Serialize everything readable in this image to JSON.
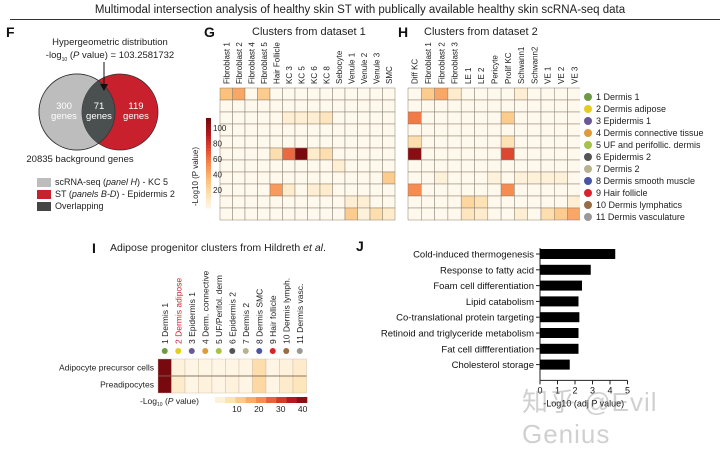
{
  "page_title": "Multimodal intersection analysis of healthy skin ST with publically available healthy skin scRNA-seq data",
  "panels": {
    "F": {
      "letter": "F",
      "title_line1": "Hypergeometric distribution",
      "title_line2": "-log",
      "title_sub": "10",
      "title_line2b": " (",
      "title_italic": "P",
      "title_line2c": " value) = 103.2581732",
      "left_count": "300",
      "center_count": "71",
      "right_count": "119",
      "genes_word": "genes",
      "background": "20835 background genes",
      "legend": [
        {
          "label_pre": "scRNA-seq (",
          "label_it": "panel H",
          "label_post": ") - KC 5",
          "color": "#bdbdbd"
        },
        {
          "label_pre": "ST (",
          "label_it": "panels B-D",
          "label_post": ") - Epidermis 2",
          "color": "#c8202c"
        },
        {
          "label_pre": "Overlapping",
          "label_it": "",
          "label_post": "",
          "color": "#454545"
        }
      ],
      "colors": {
        "left": "#bdbdbd",
        "right": "#c8202c",
        "overlap": "#4a5050"
      }
    },
    "G": {
      "letter": "G",
      "title": "Clusters from dataset 1"
    },
    "H": {
      "letter": "H",
      "title": "Clusters from dataset 2"
    },
    "I": {
      "letter": "I",
      "title_pre": "Adipose progenitor clusters from Hildreth ",
      "title_it": "et al",
      "title_post": "."
    },
    "J": {
      "letter": "J"
    }
  },
  "legend_clusters": [
    {
      "label": "1 Dermis 1",
      "color": "#6f9a45"
    },
    {
      "label": "2 Dermis adipose",
      "color": "#e4cc25"
    },
    {
      "label": "3 Epidermis 1",
      "color": "#6a5a94"
    },
    {
      "label": "4 Dermis connective tissue",
      "color": "#e09a3a"
    },
    {
      "label": "5 UF and perifollic. dermis",
      "color": "#a5c24a"
    },
    {
      "label": "6 Epidermis 2",
      "color": "#555555"
    },
    {
      "label": "7 Dermis 2",
      "color": "#b8b38f"
    },
    {
      "label": "8 Dermis smooth muscle",
      "color": "#4a54a6"
    },
    {
      "label": "9 Hair follicle",
      "color": "#d9232c"
    },
    {
      "label": "10 Dermis lymphatics",
      "color": "#9a6c42"
    },
    {
      "label": "11 Dermis vasculature",
      "color": "#999999"
    }
  ],
  "colorbar_G": {
    "label": "-Log10 (P value)",
    "ticks": [
      "100",
      "80",
      "60",
      "40",
      "20"
    ]
  },
  "colorbar_I": {
    "label_pre": "-Log",
    "label_sub": "10",
    "label_post": " (",
    "label_it": "P",
    "label_end": " value)",
    "ticks": [
      "10",
      "20",
      "30",
      "40"
    ]
  },
  "watermark": "知乎 @Evil Genius",
  "chart_data": [
    {
      "type": "heatmap",
      "title": "Clusters from dataset 1",
      "columns": [
        "Fibroblast 1",
        "Fibroblast 2",
        "Fibroblast 4",
        "Fibroblast 5",
        "Hair Follicle",
        "KC 3",
        "KC 5",
        "KC 6",
        "KC 8",
        "Sebocyte",
        "Venule 1",
        "Venule 2",
        "Venule 3",
        "SMC"
      ],
      "rows": [
        "1 Dermis 1",
        "2 Dermis adipose",
        "3 Epidermis 1",
        "4 Dermis connective tissue",
        "5 UF and perifollic. dermis",
        "6 Epidermis 2",
        "7 Dermis 2",
        "8 Dermis smooth muscle",
        "9 Hair follicle",
        "10 Dermis lymphatics",
        "11 Dermis vasculature"
      ],
      "values": [
        [
          35,
          45,
          0,
          30,
          0,
          0,
          0,
          0,
          0,
          0,
          0,
          0,
          0,
          0
        ],
        [
          0,
          0,
          0,
          0,
          0,
          0,
          0,
          0,
          0,
          0,
          0,
          0,
          0,
          0
        ],
        [
          0,
          0,
          0,
          0,
          0,
          8,
          8,
          8,
          15,
          0,
          0,
          0,
          0,
          0
        ],
        [
          0,
          0,
          0,
          0,
          0,
          0,
          0,
          0,
          0,
          0,
          0,
          0,
          0,
          0
        ],
        [
          0,
          0,
          0,
          0,
          0,
          0,
          0,
          0,
          0,
          0,
          0,
          0,
          0,
          0
        ],
        [
          0,
          0,
          0,
          0,
          20,
          65,
          110,
          10,
          20,
          0,
          0,
          0,
          0,
          0
        ],
        [
          0,
          0,
          0,
          0,
          0,
          0,
          0,
          0,
          0,
          8,
          0,
          0,
          0,
          0
        ],
        [
          0,
          0,
          0,
          0,
          0,
          0,
          0,
          0,
          0,
          0,
          0,
          0,
          0,
          30
        ],
        [
          0,
          0,
          0,
          0,
          50,
          10,
          0,
          8,
          10,
          0,
          0,
          0,
          0,
          0
        ],
        [
          0,
          0,
          0,
          0,
          0,
          0,
          0,
          0,
          0,
          0,
          8,
          8,
          0,
          0
        ],
        [
          0,
          0,
          0,
          0,
          0,
          0,
          0,
          0,
          0,
          0,
          30,
          5,
          20,
          10
        ]
      ],
      "colorbar": {
        "label": "-Log10 (P value)",
        "range": [
          0,
          110
        ],
        "ticks": [
          20,
          40,
          60,
          80,
          100
        ]
      }
    },
    {
      "type": "heatmap",
      "title": "Clusters from dataset 2",
      "columns": [
        "Diff KC",
        "Fibroblast 1",
        "Fibroblast 2",
        "Fibroblast 3",
        "LE 1",
        "LE 2",
        "Pericyte",
        "Prolif KC",
        "Schwann1",
        "Schwann2",
        "VE 1",
        "VE 2",
        "VE 3"
      ],
      "rows": [
        "1 Dermis 1",
        "2 Dermis adipose",
        "3 Epidermis 1",
        "4 Dermis connective tissue",
        "5 UF and perifollic. dermis",
        "6 Epidermis 2",
        "7 Dermis 2",
        "8 Dermis smooth muscle",
        "9 Hair follicle",
        "10 Dermis lymphatics",
        "11 Dermis vasculature"
      ],
      "values": [
        [
          0,
          30,
          45,
          10,
          0,
          0,
          0,
          0,
          8,
          0,
          0,
          0,
          0
        ],
        [
          0,
          0,
          0,
          0,
          0,
          0,
          0,
          0,
          0,
          0,
          0,
          0,
          0
        ],
        [
          60,
          0,
          0,
          0,
          0,
          0,
          0,
          30,
          0,
          0,
          0,
          0,
          0
        ],
        [
          0,
          0,
          0,
          0,
          0,
          0,
          0,
          0,
          0,
          0,
          0,
          0,
          0
        ],
        [
          20,
          0,
          0,
          0,
          0,
          0,
          0,
          18,
          0,
          0,
          0,
          0,
          0
        ],
        [
          105,
          0,
          0,
          0,
          0,
          0,
          0,
          75,
          0,
          0,
          0,
          0,
          0
        ],
        [
          0,
          0,
          0,
          0,
          0,
          0,
          0,
          0,
          0,
          0,
          0,
          0,
          0
        ],
        [
          0,
          0,
          6,
          0,
          0,
          0,
          5,
          0,
          6,
          6,
          6,
          6,
          0
        ],
        [
          55,
          0,
          0,
          0,
          0,
          0,
          0,
          55,
          0,
          0,
          0,
          0,
          0
        ],
        [
          0,
          0,
          0,
          0,
          25,
          18,
          0,
          0,
          0,
          0,
          0,
          0,
          8
        ],
        [
          0,
          0,
          0,
          0,
          15,
          10,
          0,
          0,
          8,
          0,
          20,
          30,
          45
        ]
      ],
      "colorbar": {
        "label": "-Log10 (P value)",
        "range": [
          0,
          110
        ],
        "ticks": [
          20,
          40,
          60,
          80,
          100
        ]
      }
    },
    {
      "type": "heatmap",
      "title": "Adipose progenitor clusters from Hildreth et al.",
      "columns": [
        "1 Dermis 1",
        "2 Dermis adipose",
        "3 Epidermis 1",
        "4 Derm. connective",
        "5 UF/Perifol. derm",
        "6 Epidermis 2",
        "7 Dermis 2",
        "8 Dermis SMC",
        "9 Hair follicle",
        "10 Dermis lymph.",
        "11 Dermis vasc."
      ],
      "column_colors": [
        "#6f9a45",
        "#e4cc25",
        "#6a5a94",
        "#e09a3a",
        "#a5c24a",
        "#555555",
        "#b8b38f",
        "#4a54a6",
        "#d9232c",
        "#9a6c42",
        "#999999"
      ],
      "highlight_column": "2 Dermis adipose",
      "rows": [
        "Adipocyte precursor cells",
        "Preadipocytes"
      ],
      "values": [
        [
          42,
          2,
          1,
          1,
          1,
          1,
          1,
          8,
          1,
          2,
          4
        ],
        [
          42,
          4,
          1,
          2,
          1,
          2,
          1,
          9,
          1,
          4,
          6
        ]
      ],
      "colorbar": {
        "label": "-Log10 (P value)",
        "range": [
          0,
          42
        ],
        "ticks": [
          10,
          20,
          30,
          40
        ]
      }
    },
    {
      "type": "bar",
      "orientation": "horizontal",
      "categories": [
        "Cold-induced thermogenesis",
        "Response to fatty acid",
        "Foam cell differentiation",
        "Lipid catabolism",
        "Co-translational protein targeting",
        "Retinoid and triglyceride metabolism",
        "Fat cell diffferentiation",
        "Cholesterol storage"
      ],
      "values": [
        4.3,
        2.9,
        2.4,
        2.2,
        2.25,
        2.2,
        2.2,
        1.7
      ],
      "xlabel": "-Log10 (adj P value)",
      "xlim": [
        0,
        5
      ],
      "xticks": [
        0,
        1,
        2,
        3,
        4,
        5
      ],
      "color": "#000000"
    }
  ]
}
